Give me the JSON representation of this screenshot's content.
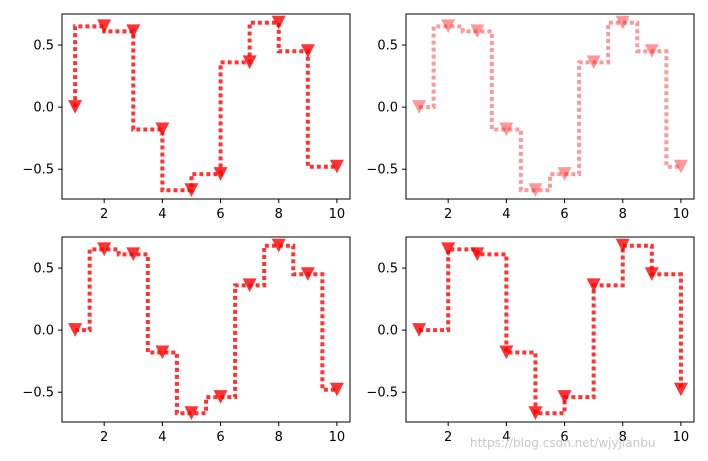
{
  "watermark": "https://blog.csdn.net/wjyjianbu",
  "colors": {
    "series": "#ff0000",
    "axes": "#000000",
    "background": "#ffffff"
  },
  "chart_data": [
    {
      "type": "line",
      "drawstyle": "steps-pre",
      "marker": "triangle-down",
      "linestyle": "dotted",
      "alpha": 0.8,
      "x": [
        1,
        2,
        3,
        4,
        5,
        6,
        7,
        8,
        9,
        10
      ],
      "series": [
        {
          "values": [
            0.0,
            0.65,
            0.61,
            -0.18,
            -0.67,
            -0.54,
            0.36,
            0.68,
            0.45,
            -0.48
          ]
        }
      ],
      "xticks": [
        2,
        4,
        6,
        8,
        10
      ],
      "yticks": [
        -0.5,
        0.0,
        0.5
      ],
      "xlim": [
        0.55,
        10.45
      ],
      "ylim": [
        -0.74,
        0.75
      ],
      "grid": false
    },
    {
      "type": "line",
      "drawstyle": "steps-mid",
      "marker": "triangle-down",
      "linestyle": "dotted",
      "alpha": 0.4,
      "x": [
        1,
        2,
        3,
        4,
        5,
        6,
        7,
        8,
        9,
        10
      ],
      "series": [
        {
          "values": [
            0.0,
            0.65,
            0.61,
            -0.18,
            -0.67,
            -0.54,
            0.36,
            0.68,
            0.45,
            -0.48
          ]
        }
      ],
      "xticks": [
        2,
        4,
        6,
        8,
        10
      ],
      "yticks": [
        -0.5,
        0.0,
        0.5
      ],
      "xlim": [
        0.55,
        10.45
      ],
      "ylim": [
        -0.74,
        0.75
      ],
      "grid": false
    },
    {
      "type": "line",
      "drawstyle": "steps-mid",
      "marker": "triangle-down",
      "linestyle": "dotted",
      "alpha": 0.8,
      "x": [
        1,
        2,
        3,
        4,
        5,
        6,
        7,
        8,
        9,
        10
      ],
      "series": [
        {
          "values": [
            0.0,
            0.65,
            0.61,
            -0.18,
            -0.67,
            -0.54,
            0.36,
            0.68,
            0.45,
            -0.48
          ]
        }
      ],
      "xticks": [
        2,
        4,
        6,
        8,
        10
      ],
      "yticks": [
        -0.5,
        0.0,
        0.5
      ],
      "xlim": [
        0.55,
        10.45
      ],
      "ylim": [
        -0.74,
        0.75
      ],
      "grid": false
    },
    {
      "type": "line",
      "drawstyle": "steps-post",
      "marker": "triangle-down",
      "linestyle": "dotted",
      "alpha": 0.8,
      "x": [
        1,
        2,
        3,
        4,
        5,
        6,
        7,
        8,
        9,
        10
      ],
      "series": [
        {
          "values": [
            0.0,
            0.65,
            0.61,
            -0.18,
            -0.67,
            -0.54,
            0.36,
            0.68,
            0.45,
            -0.48
          ]
        }
      ],
      "xticks": [
        2,
        4,
        6,
        8,
        10
      ],
      "yticks": [
        -0.5,
        0.0,
        0.5
      ],
      "xlim": [
        0.55,
        10.45
      ],
      "ylim": [
        -0.74,
        0.75
      ],
      "grid": false
    }
  ]
}
